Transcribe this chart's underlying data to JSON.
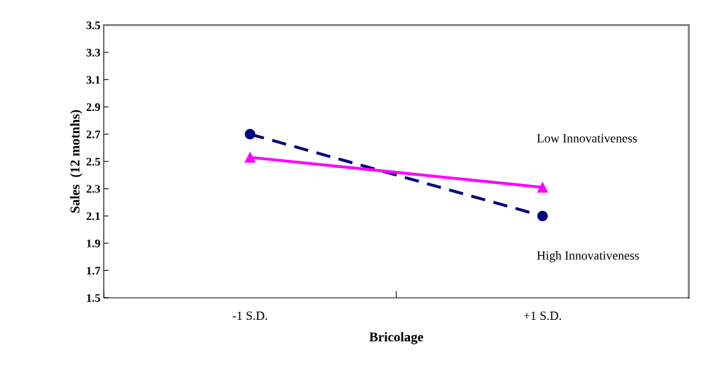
{
  "chart_data": {
    "type": "line",
    "xlabel": "Bricolage",
    "ylabel": "Sales  (12 motnhs)",
    "categories": [
      "-1 S.D.",
      "+1 S.D."
    ],
    "series": [
      {
        "color": "#000080",
        "values": [
          2.7,
          2.1
        ],
        "marker": "circle",
        "line_style": "dashed"
      },
      {
        "color": "#ff00ff",
        "values": [
          2.53,
          2.31
        ],
        "marker": "triangle",
        "line_style": "solid"
      }
    ],
    "annotations": [
      "Low Innovativeness",
      "High Innovativeness"
    ],
    "ylim": [
      1.5,
      3.5
    ],
    "yticks": [
      {
        "value": 1.5,
        "label": "1.5"
      },
      {
        "value": 1.7,
        "label": "1.7"
      },
      {
        "value": 1.9,
        "label": "1.9"
      },
      {
        "value": 2.1,
        "label": "2.1"
      },
      {
        "value": 2.3,
        "label": "2.3"
      },
      {
        "value": 2.5,
        "label": "2.5"
      },
      {
        "value": 2.7,
        "label": "2.7"
      },
      {
        "value": 2.9,
        "label": "2.9"
      },
      {
        "value": 3.1,
        "label": "3.1"
      },
      {
        "value": 3.3,
        "label": "3.3"
      },
      {
        "value": 3.5,
        "label": "3.5"
      }
    ],
    "grid": false,
    "legend": false
  }
}
